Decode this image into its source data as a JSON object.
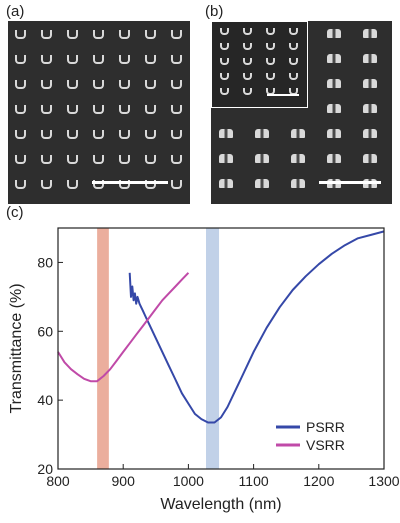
{
  "panels": {
    "a_label": "(a)",
    "b_label": "(b)",
    "c_label": "(c)"
  },
  "sem_colors": {
    "background": "#2e2e2e",
    "feature": "#d9d9d9",
    "scalebar": "#ffffff"
  },
  "chart_data": {
    "type": "line",
    "xlabel": "Wavelength (nm)",
    "ylabel": "Transmittance (%)",
    "xlim": [
      800,
      1300
    ],
    "ylim": [
      20,
      90
    ],
    "xticks": [
      800,
      900,
      1000,
      1100,
      1200,
      1300
    ],
    "yticks": [
      20,
      40,
      60,
      80
    ],
    "legend": "bottom-right",
    "highlight_bands": [
      {
        "x": [
          860,
          878
        ],
        "color": "#e8a08c"
      },
      {
        "x": [
          1027,
          1047
        ],
        "color": "#b6c9e4"
      }
    ],
    "series": [
      {
        "name": "PSRR",
        "color": "#3548a8",
        "x": [
          910,
          912,
          914,
          916,
          918,
          920,
          922,
          925,
          930,
          935,
          940,
          950,
          960,
          970,
          980,
          990,
          1000,
          1010,
          1020,
          1030,
          1040,
          1050,
          1060,
          1070,
          1080,
          1090,
          1100,
          1120,
          1140,
          1160,
          1180,
          1200,
          1220,
          1240,
          1260,
          1280,
          1300
        ],
        "y": [
          77,
          70,
          73,
          69,
          71,
          68,
          70,
          68,
          66,
          64,
          62,
          58,
          54,
          50,
          46,
          42,
          39,
          36,
          34.5,
          33.5,
          33.5,
          35,
          38,
          42,
          46,
          50,
          54,
          61,
          67,
          72,
          76,
          79.5,
          82.5,
          85,
          87,
          88,
          89
        ]
      },
      {
        "name": "VSRR",
        "color": "#c04aa8",
        "x": [
          800,
          810,
          820,
          830,
          840,
          850,
          860,
          870,
          880,
          890,
          900,
          910,
          920,
          930,
          940,
          950,
          960,
          970,
          980,
          990,
          1000
        ],
        "y": [
          54,
          51,
          49,
          47.5,
          46.2,
          45.5,
          45.5,
          47,
          49,
          51.5,
          54,
          56.5,
          59,
          61.5,
          64,
          66.5,
          69,
          71,
          73,
          75,
          77
        ]
      }
    ]
  }
}
